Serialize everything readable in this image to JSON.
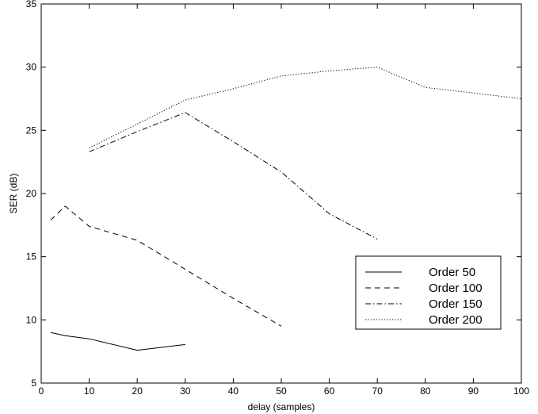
{
  "chart_data": {
    "type": "line",
    "xlabel": "delay (samples)",
    "ylabel": "SER (dB)",
    "xlim": [
      0,
      100
    ],
    "ylim": [
      5,
      35
    ],
    "xticks": [
      "0",
      "10",
      "20",
      "30",
      "40",
      "50",
      "60",
      "70",
      "80",
      "90",
      "100"
    ],
    "yticks": [
      "5",
      "10",
      "15",
      "20",
      "25",
      "30",
      "35"
    ],
    "grid": false,
    "legend_position": "bottom-right",
    "series": [
      {
        "name": "Order 50",
        "style": "solid",
        "x": [
          2,
          5,
          10,
          20,
          30
        ],
        "y": [
          9.0,
          8.75,
          8.5,
          7.6,
          8.05
        ]
      },
      {
        "name": "Order 100",
        "style": "dashed",
        "x": [
          2,
          5,
          10,
          20,
          30,
          40,
          50
        ],
        "y": [
          17.9,
          19.0,
          17.4,
          16.3,
          14.0,
          11.7,
          9.5
        ]
      },
      {
        "name": "Order 150",
        "style": "dashdot",
        "x": [
          10,
          20,
          30,
          40,
          50,
          60,
          70
        ],
        "y": [
          23.3,
          24.9,
          26.4,
          24.1,
          21.7,
          18.4,
          16.4
        ]
      },
      {
        "name": "Order 200",
        "style": "dotted",
        "x": [
          10,
          20,
          30,
          40,
          50,
          60,
          70,
          80,
          90,
          100
        ],
        "y": [
          23.6,
          25.5,
          27.4,
          28.3,
          29.3,
          29.7,
          30.0,
          28.4,
          27.95,
          27.5
        ]
      }
    ]
  }
}
